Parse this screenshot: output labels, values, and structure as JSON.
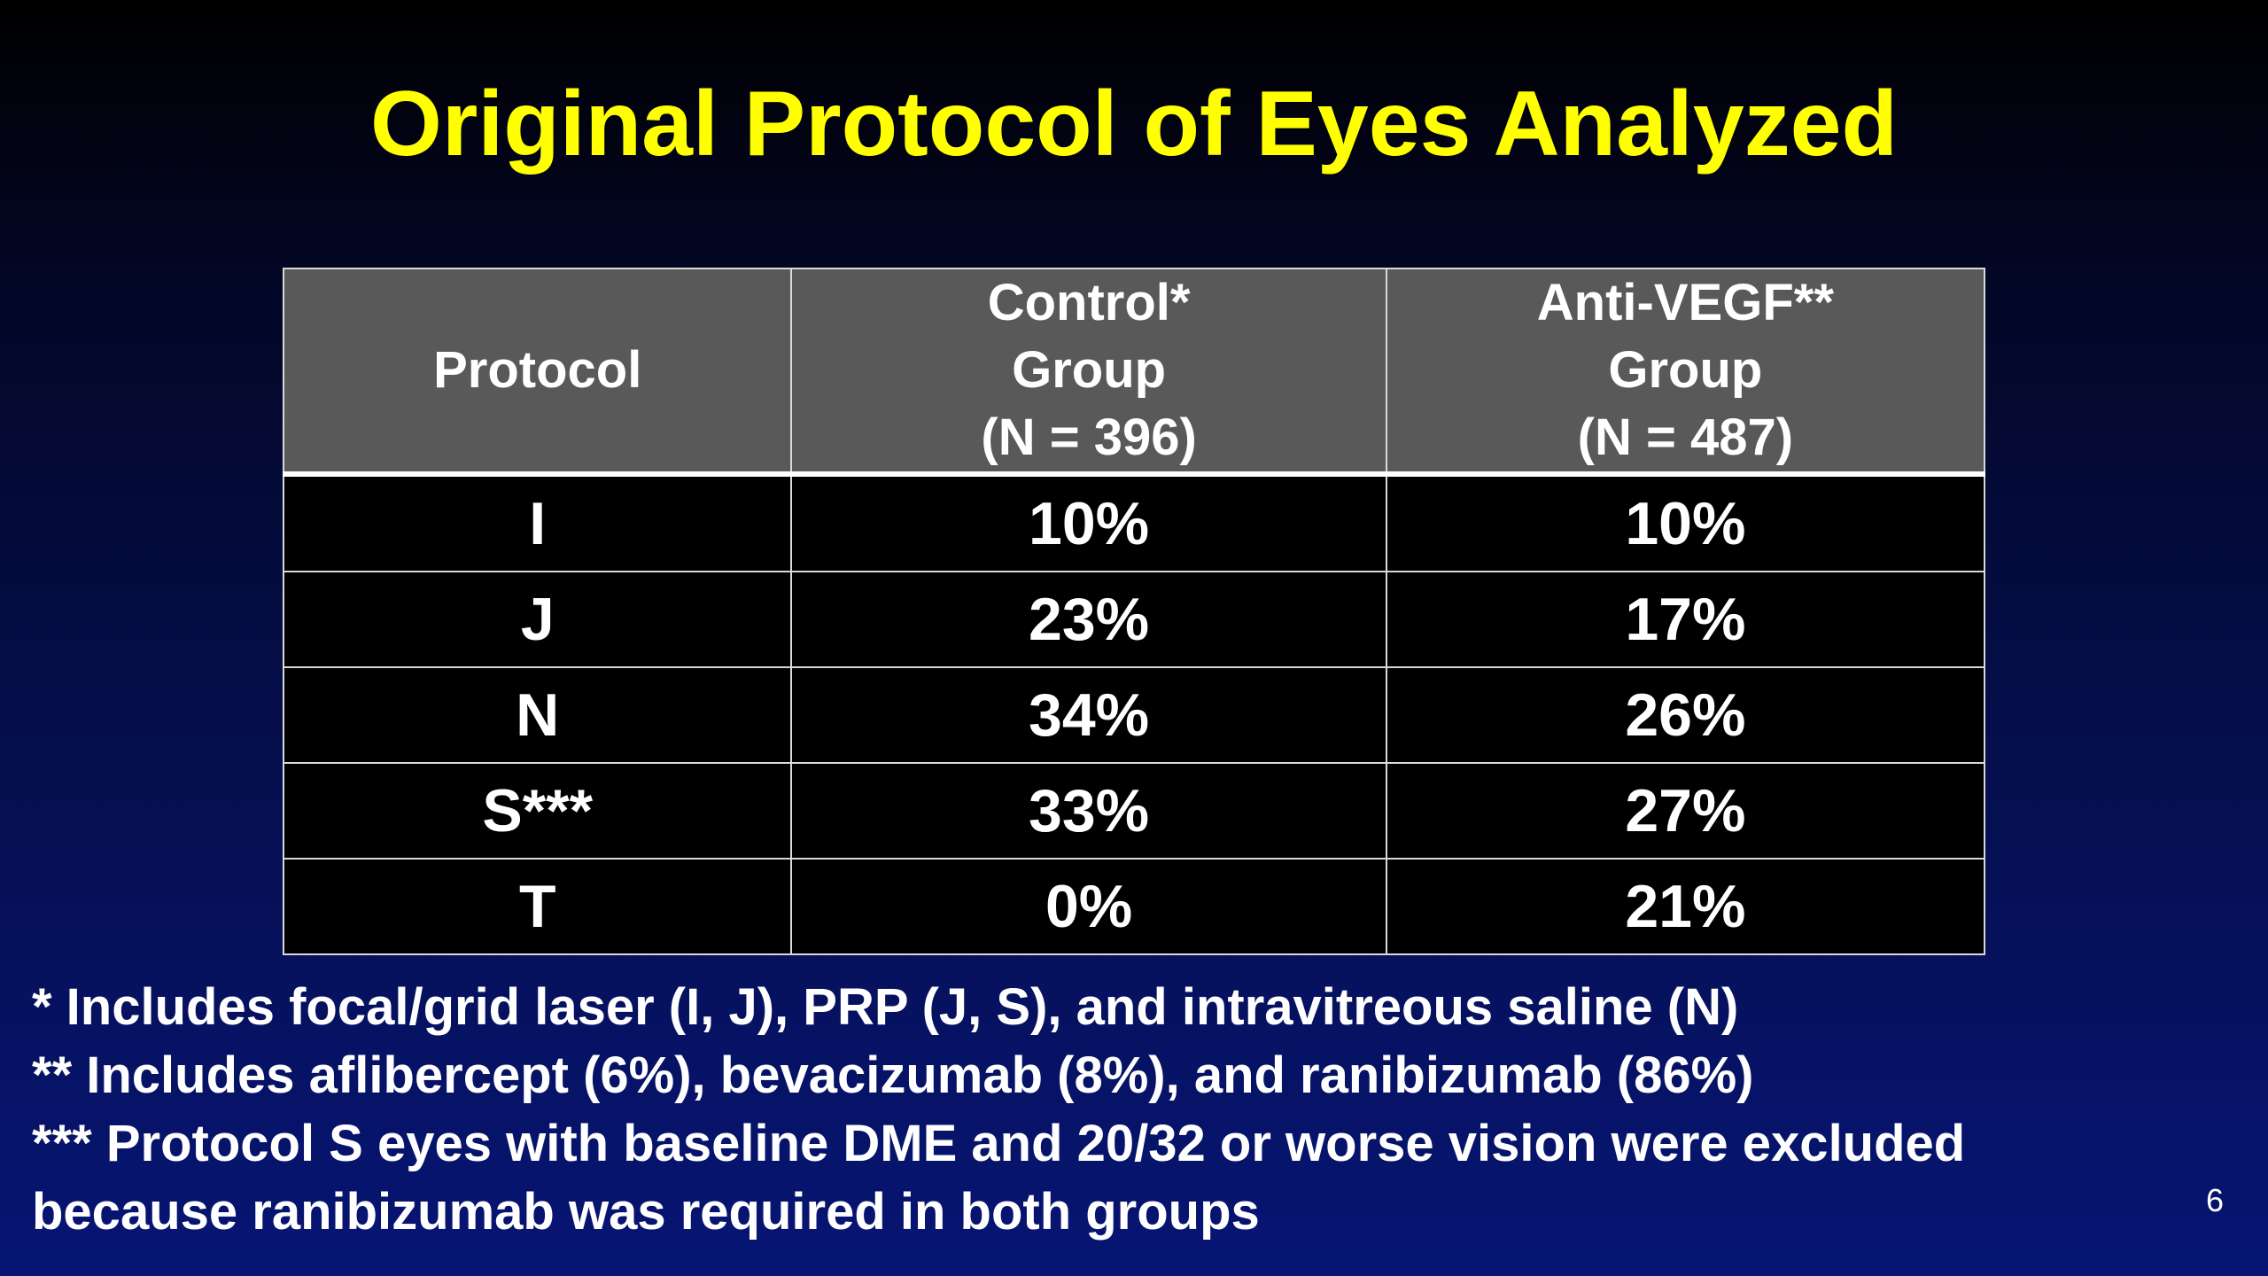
{
  "title": "Original Protocol of Eyes Analyzed",
  "table": {
    "headers": [
      {
        "lines": [
          "Protocol"
        ]
      },
      {
        "lines": [
          "Control*",
          "Group",
          "(N = 396)"
        ]
      },
      {
        "lines": [
          "Anti-VEGF**",
          "Group",
          "(N = 487)"
        ]
      }
    ],
    "rows": [
      [
        "I",
        "10%",
        "10%"
      ],
      [
        "J",
        "23%",
        "17%"
      ],
      [
        "N",
        "34%",
        "26%"
      ],
      [
        "S***",
        "33%",
        "27%"
      ],
      [
        "T",
        "0%",
        "21%"
      ]
    ]
  },
  "footnotes": [
    "* Includes focal/grid laser (I, J), PRP (J, S), and intravitreous saline (N)",
    "** Includes aflibercept (6%), bevacizumab (8%), and ranibizumab (86%)",
    "*** Protocol S eyes with baseline DME and 20/32 or worse vision were excluded",
    "because ranibizumab was required in both groups"
  ],
  "page_number": "6",
  "colors": {
    "title": "#ffff00",
    "header_background": "#595959",
    "cell_background": "#000000",
    "slide_background_top": "#000000",
    "slide_background_bottom": "#071574"
  }
}
